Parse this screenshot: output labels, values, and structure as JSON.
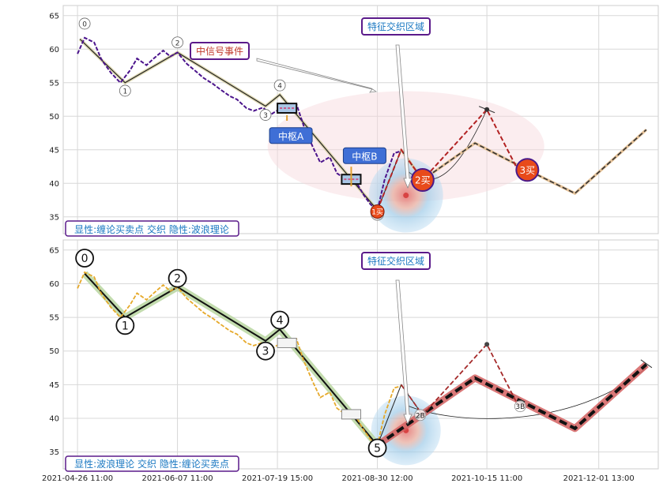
{
  "chart_data": [
    {
      "type": "line",
      "panel": "top",
      "ylim": [
        32.5,
        66.5
      ],
      "y_ticks": [
        35,
        40,
        45,
        50,
        55,
        60,
        65
      ],
      "grid": true,
      "dates": [
        "2021-04-26",
        "2021-06-07",
        "2021-07-19",
        "2021-08-30",
        "2021-10-15",
        "2021-12-01"
      ],
      "series": [
        {
          "style": "dashed-purple",
          "x": [
            "2021-04-26",
            "2021-04-29",
            "2021-05-03",
            "2021-05-06",
            "2021-05-10",
            "2021-05-14",
            "2021-05-18",
            "2021-05-21",
            "2021-05-25",
            "2021-05-28",
            "2021-06-01",
            "2021-06-04",
            "2021-06-07",
            "2021-06-11",
            "2021-06-15",
            "2021-06-18",
            "2021-06-22",
            "2021-06-25",
            "2021-06-29",
            "2021-07-02",
            "2021-07-06",
            "2021-07-09",
            "2021-07-13",
            "2021-07-16",
            "2021-07-20",
            "2021-07-23",
            "2021-07-27",
            "2021-07-30",
            "2021-08-03",
            "2021-08-06",
            "2021-08-10",
            "2021-08-13",
            "2021-08-17",
            "2021-08-20",
            "2021-08-24",
            "2021-08-27",
            "2021-08-30",
            "2021-09-02",
            "2021-09-06",
            "2021-09-09"
          ],
          "values": [
            59.3,
            61.7,
            61.0,
            58.5,
            56.5,
            55.0,
            56.8,
            58.6,
            57.6,
            58.6,
            59.8,
            58.9,
            59.5,
            57.8,
            56.6,
            55.7,
            54.8,
            54.0,
            53.0,
            52.5,
            51.2,
            50.8,
            51.3,
            50.2,
            51.1,
            50.6,
            51.8,
            48.6,
            45.3,
            43.1,
            43.9,
            41.5,
            40.5,
            40.9,
            38.4,
            36.9,
            36.0,
            40.5,
            44.5,
            44.8
          ]
        },
        {
          "style": "solid-black-zigzag",
          "x": [
            "2021-04-27",
            "2021-05-16",
            "2021-06-07",
            "2021-07-14",
            "2021-07-20",
            "2021-08-30"
          ],
          "values": [
            61.5,
            55.0,
            59.5,
            51.5,
            53.2,
            36.0
          ]
        },
        {
          "style": "dashed-red",
          "x": [
            "2021-08-30",
            "2021-09-09",
            "2021-09-18",
            "2021-10-15",
            "2021-10-28"
          ],
          "values": [
            36.0,
            45.0,
            40.5,
            51.0,
            42.0
          ]
        },
        {
          "style": "dashed-tan",
          "x": [
            "2021-09-09",
            "2021-09-18",
            "2021-10-10",
            "2021-11-01",
            "2021-11-21",
            "2021-12-21"
          ],
          "values": [
            45.0,
            40.5,
            46.0,
            42.0,
            38.5,
            48.0
          ]
        },
        {
          "style": "thin-arc",
          "x": [
            "2021-09-11",
            "2021-09-23",
            "2021-10-03",
            "2021-10-15"
          ],
          "values": [
            42.0,
            40.5,
            42.8,
            51.0
          ]
        }
      ],
      "wave_labels": [
        {
          "label": "0",
          "x": "2021-04-29",
          "y": 63.8
        },
        {
          "label": "1",
          "x": "2021-05-16",
          "y": 53.8
        },
        {
          "label": "2",
          "x": "2021-06-07",
          "y": 61.0
        },
        {
          "label": "3",
          "x": "2021-07-14",
          "y": 50.2
        },
        {
          "label": "4",
          "x": "2021-07-20",
          "y": 54.6
        },
        {
          "label": "1买",
          "x": "2021-08-30",
          "y": 35.8,
          "style": "red-dot"
        }
      ],
      "zhongshu": [
        {
          "x0": "2021-07-19",
          "x1": "2021-07-27",
          "y0": 50.5,
          "y1": 51.9,
          "label": "中枢A",
          "label_x": "2021-07-17",
          "label_y": 47.0
        },
        {
          "x0": "2021-08-15",
          "x1": "2021-08-23",
          "y0": 39.9,
          "y1": 41.3,
          "label": "中枢B",
          "label_x": "2021-08-17",
          "label_y": 44.0
        }
      ],
      "buy_points": [
        {
          "label": "2买",
          "x": "2021-09-18",
          "y": 40.5
        },
        {
          "label": "3买",
          "x": "2021-11-01",
          "y": 42.0
        }
      ],
      "annotations": {
        "signal_event": "中信号事件",
        "overlap_zone": "特征交织区域"
      },
      "footer": "显性:缠论买卖点 交织 隐性:波浪理论"
    },
    {
      "type": "line",
      "panel": "bottom",
      "ylim": [
        32.5,
        66.5
      ],
      "y_ticks": [
        35,
        40,
        45,
        50,
        55,
        60,
        65
      ],
      "grid": true,
      "dates": [
        "2021-04-26",
        "2021-06-07",
        "2021-07-19",
        "2021-08-30",
        "2021-10-15",
        "2021-12-01"
      ],
      "x_tick_labels": [
        "2021-04-26 11:00",
        "2021-06-07 11:00",
        "2021-07-19 15:00",
        "2021-08-30 12:00",
        "2021-10-15 11:00",
        "2021-12-01 13:00"
      ],
      "series": [
        {
          "style": "dashed-gold",
          "x": [
            "2021-04-26",
            "2021-04-29",
            "2021-05-03",
            "2021-05-06",
            "2021-05-10",
            "2021-05-14",
            "2021-05-18",
            "2021-05-21",
            "2021-05-25",
            "2021-05-28",
            "2021-06-01",
            "2021-06-04",
            "2021-06-07",
            "2021-06-11",
            "2021-06-15",
            "2021-06-18",
            "2021-06-22",
            "2021-06-25",
            "2021-06-29",
            "2021-07-02",
            "2021-07-06",
            "2021-07-09",
            "2021-07-13",
            "2021-07-16",
            "2021-07-20",
            "2021-07-23",
            "2021-07-27",
            "2021-07-30",
            "2021-08-03",
            "2021-08-06",
            "2021-08-10",
            "2021-08-13",
            "2021-08-17",
            "2021-08-20",
            "2021-08-24",
            "2021-08-27",
            "2021-08-30",
            "2021-09-02",
            "2021-09-06",
            "2021-09-09"
          ],
          "values": [
            59.3,
            61.7,
            61.0,
            58.5,
            56.5,
            55.0,
            56.8,
            58.6,
            57.6,
            58.6,
            59.8,
            58.9,
            59.5,
            57.8,
            56.6,
            55.7,
            54.8,
            54.0,
            53.0,
            52.5,
            51.2,
            50.8,
            51.3,
            50.2,
            51.1,
            50.6,
            51.8,
            48.6,
            45.3,
            43.1,
            43.9,
            41.5,
            40.5,
            40.9,
            38.4,
            36.9,
            36.0,
            40.5,
            44.5,
            44.8
          ]
        },
        {
          "style": "solid-black-zigzag",
          "x": [
            "2021-04-29",
            "2021-05-16",
            "2021-06-07",
            "2021-07-14",
            "2021-07-20",
            "2021-08-30"
          ],
          "values": [
            61.5,
            55.0,
            59.5,
            51.5,
            53.2,
            36.0
          ]
        },
        {
          "style": "thick-red-black-dashed",
          "x": [
            "2021-08-30",
            "2021-10-10",
            "2021-11-21",
            "2021-12-21"
          ],
          "values": [
            36.0,
            46.0,
            38.5,
            48.0
          ]
        },
        {
          "style": "dashed-darkred",
          "x": [
            "2021-09-09",
            "2021-09-18",
            "2021-10-15",
            "2021-10-28"
          ],
          "values": [
            45.0,
            40.5,
            51.0,
            42.0
          ]
        }
      ],
      "wave_labels": [
        {
          "label": "0",
          "x": "2021-04-29",
          "y": 63.8
        },
        {
          "label": "1",
          "x": "2021-05-16",
          "y": 53.8
        },
        {
          "label": "2",
          "x": "2021-06-07",
          "y": 60.8
        },
        {
          "label": "3",
          "x": "2021-07-14",
          "y": 50.0
        },
        {
          "label": "4",
          "x": "2021-07-20",
          "y": 54.6
        },
        {
          "label": "5",
          "x": "2021-08-30",
          "y": 35.6
        }
      ],
      "small_labels": [
        {
          "label": "2B",
          "x": "2021-09-17",
          "y": 40.5
        },
        {
          "label": "3B",
          "x": "2021-10-29",
          "y": 41.8
        }
      ],
      "annotations": {
        "overlap_zone": "特征交织区域"
      },
      "footer": "显性:波浪理论 交织 隐性:缠论买卖点"
    }
  ]
}
